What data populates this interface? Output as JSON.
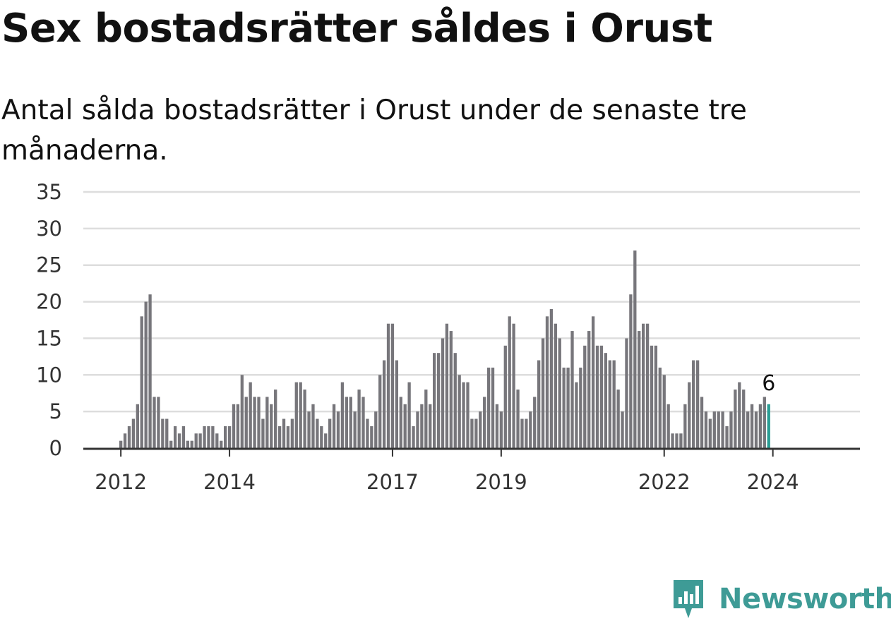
{
  "title": "Sex bostadsrätter såldes i Orust",
  "subtitle": "Antal sålda bostadsrätter i Orust under de senaste tre månaderna.",
  "logo": {
    "text": "Newsworthy",
    "icon": "newsworthy-bar-chart-icon"
  },
  "colors": {
    "bar": "#77767b",
    "highlight": "#2a9d94",
    "grid": "#dddddd",
    "axis": "#333333",
    "brand": "#3e9b96"
  },
  "chart_data": {
    "type": "bar",
    "title": "Sex bostadsrätter såldes i Orust",
    "subtitle": "Antal sålda bostadsrätter i Orust under de senaste tre månaderna.",
    "xlabel": "",
    "ylabel": "",
    "ylim": [
      0,
      35
    ],
    "yticks": [
      0,
      5,
      10,
      15,
      20,
      25,
      30,
      35
    ],
    "xticks": [
      {
        "label": "2012",
        "index": 0
      },
      {
        "label": "2014",
        "index": 26
      },
      {
        "label": "2017",
        "index": 65
      },
      {
        "label": "2019",
        "index": 91
      },
      {
        "label": "2022",
        "index": 130
      },
      {
        "label": "2024",
        "index": 156
      }
    ],
    "grid": true,
    "legend": "none",
    "start_period": "2012-01",
    "frequency": "monthly",
    "highlight_last": true,
    "last_value_label": "6",
    "values": [
      1,
      2,
      3,
      4,
      6,
      18,
      20,
      21,
      7,
      7,
      4,
      4,
      1,
      3,
      2,
      3,
      1,
      1,
      2,
      2,
      3,
      3,
      3,
      2,
      1,
      3,
      3,
      6,
      6,
      10,
      7,
      9,
      7,
      7,
      4,
      7,
      6,
      8,
      3,
      4,
      3,
      4,
      9,
      9,
      8,
      5,
      6,
      4,
      3,
      2,
      4,
      6,
      5,
      9,
      7,
      7,
      5,
      8,
      7,
      4,
      3,
      5,
      10,
      12,
      17,
      17,
      12,
      7,
      6,
      9,
      3,
      5,
      6,
      8,
      6,
      13,
      13,
      15,
      17,
      16,
      13,
      10,
      9,
      9,
      4,
      4,
      5,
      7,
      11,
      11,
      6,
      5,
      14,
      18,
      17,
      8,
      4,
      4,
      5,
      7,
      12,
      15,
      18,
      19,
      17,
      15,
      11,
      11,
      16,
      9,
      11,
      14,
      16,
      18,
      14,
      14,
      13,
      12,
      12,
      8,
      5,
      15,
      21,
      27,
      16,
      17,
      17,
      14,
      14,
      11,
      10,
      6,
      2,
      2,
      2,
      6,
      9,
      12,
      12,
      7,
      5,
      4,
      5,
      5,
      5,
      3,
      5,
      8,
      9,
      8,
      5,
      6,
      5,
      6,
      7,
      6
    ]
  }
}
